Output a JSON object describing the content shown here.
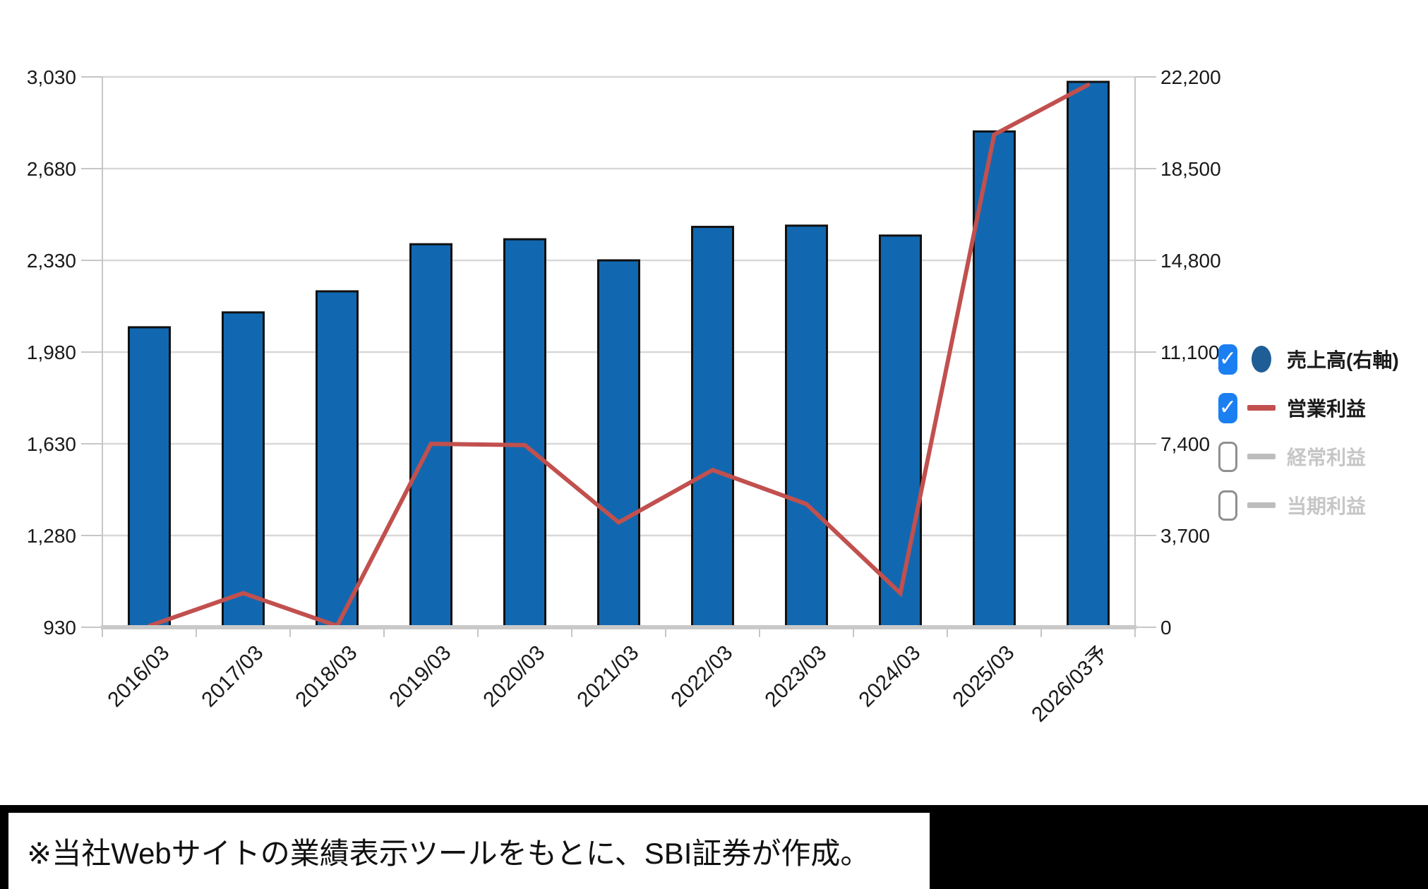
{
  "chart_data": {
    "type": "bar",
    "subtype": "bar+line combo, dual axis",
    "categories": [
      "2016/03",
      "2017/03",
      "2018/03",
      "2019/03",
      "2020/03",
      "2021/03",
      "2022/03",
      "2023/03",
      "2024/03",
      "2025/03",
      "2026/03予"
    ],
    "series": [
      {
        "name": "売上高(右軸)",
        "type": "bar",
        "axis": "right",
        "color": "#1168b0",
        "enabled": true,
        "values": [
          12100,
          12700,
          13550,
          15450,
          15650,
          14800,
          16150,
          16200,
          15800,
          20000,
          22000
        ]
      },
      {
        "name": "営業利益",
        "type": "line",
        "axis": "left",
        "color": "#c1504e",
        "enabled": true,
        "values": [
          935,
          1060,
          935,
          1630,
          1625,
          1330,
          1530,
          1400,
          1060,
          2810,
          3000
        ]
      },
      {
        "name": "経常利益",
        "type": "line",
        "axis": "left",
        "color": "#bdbdbd",
        "enabled": false,
        "values": []
      },
      {
        "name": "当期利益",
        "type": "line",
        "axis": "left",
        "color": "#bdbdbd",
        "enabled": false,
        "values": []
      }
    ],
    "left_axis": {
      "min": 930,
      "max": 3030,
      "tick_step": 350,
      "tick_labels": [
        "930",
        "1,280",
        "1,630",
        "1,980",
        "2,330",
        "2,680",
        "3,030"
      ]
    },
    "right_axis": {
      "min": 0,
      "max": 22200,
      "tick_step": 3700,
      "tick_labels": [
        "0",
        "3,700",
        "7,400",
        "11,100",
        "14,800",
        "18,500",
        "22,200"
      ]
    },
    "grid": true,
    "legend_position": "right",
    "x_label_rotation_deg": -45
  },
  "legend": {
    "items": [
      {
        "label": "売上高(右軸)",
        "checked": true,
        "marker": "circle",
        "color": "#1e5d96"
      },
      {
        "label": "営業利益",
        "checked": true,
        "marker": "line",
        "color": "#c1504e"
      },
      {
        "label": "経常利益",
        "checked": false,
        "marker": "line",
        "color": "#bdbdbd"
      },
      {
        "label": "当期利益",
        "checked": false,
        "marker": "line",
        "color": "#bdbdbd"
      }
    ],
    "checkbox_color": "#1b7ff2"
  },
  "footer": {
    "note": "※当社Webサイトの業績表示ツールをもとに、SBI証券が作成。"
  },
  "colors": {
    "bar_fill": "#1168b0",
    "bar_stroke": "#111111",
    "line_red": "#c1504e",
    "grid": "#d8d8d8",
    "axis": "#c6c6c6",
    "axis_bottom": "#c9c9c9",
    "tick_text": "#1a1a1a",
    "disabled_text": "#c6c6c6",
    "checkbox_blue": "#1b7ff2",
    "background": "#ffffff",
    "footer_bar": "#000000",
    "footer_box": "#ffffff"
  }
}
